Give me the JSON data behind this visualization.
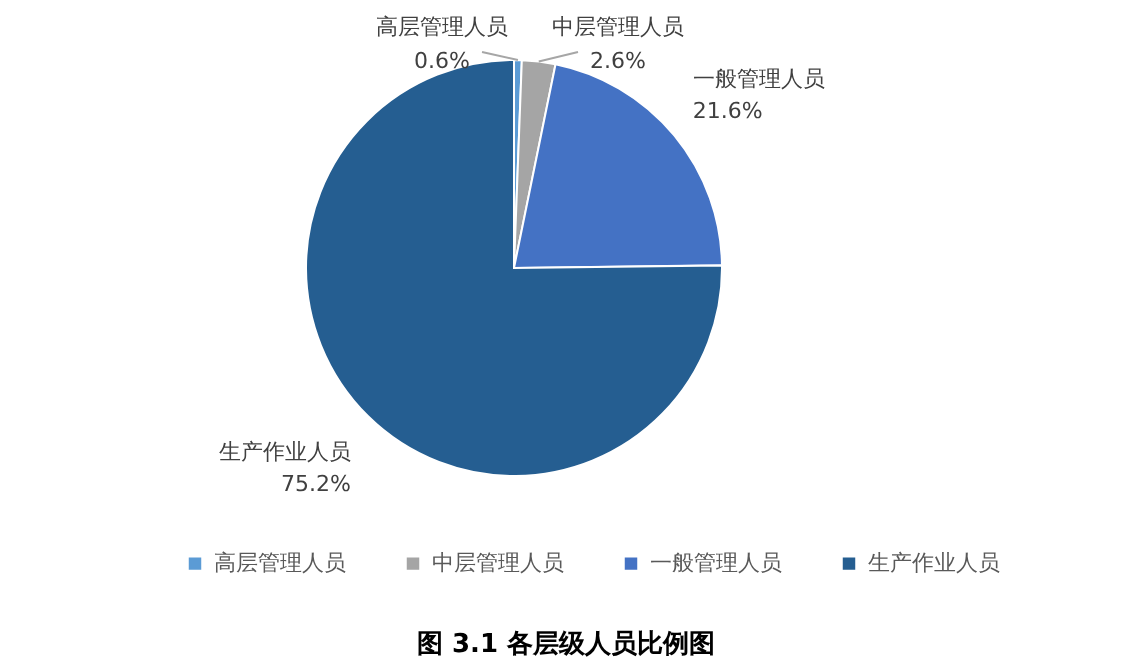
{
  "chart_data": {
    "type": "pie",
    "title": "图 3.1 各层级人员比例图",
    "categories": [
      "高层管理人员",
      "中层管理人员",
      "一般管理人员",
      "生产作业人员"
    ],
    "values": [
      0.6,
      2.6,
      21.6,
      75.2
    ],
    "value_labels": [
      "0.6%",
      "2.6%",
      "21.6%",
      "75.2%"
    ],
    "colors": [
      "#5b9bd5",
      "#a5a5a5",
      "#4472c4",
      "#255e91"
    ],
    "legend": "bottom"
  }
}
